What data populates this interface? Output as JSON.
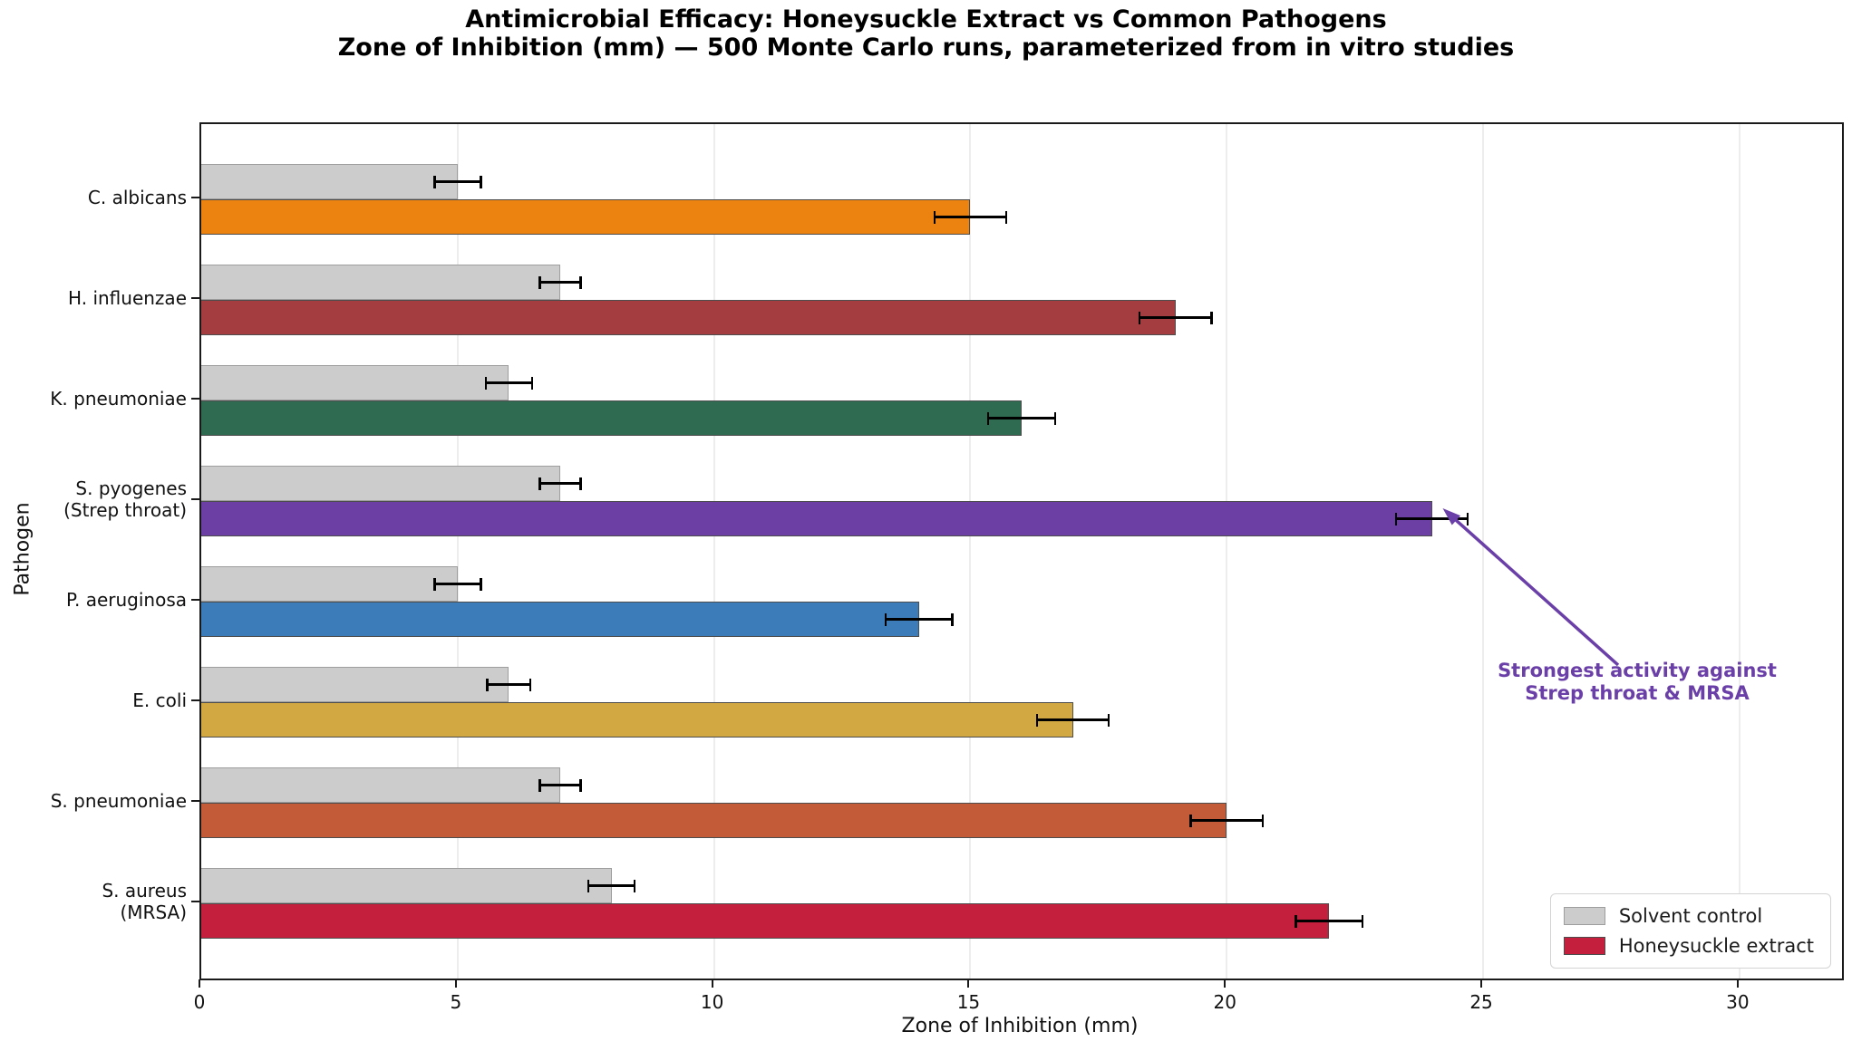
{
  "figure": {
    "title": "Antimicrobial Efficacy: Honeysuckle Extract vs Common Pathogens",
    "subtitle": "Zone of Inhibition (mm) — 500 Monte Carlo runs, parameterized from in vitro studies"
  },
  "chart_data": {
    "type": "bar",
    "orientation": "horizontal",
    "title": "Antimicrobial Efficacy: Honeysuckle Extract vs Common Pathogens",
    "subtitle": "Zone of Inhibition (mm) — 500 Monte Carlo runs, parameterized from in vitro studies",
    "xlabel": "Zone of Inhibition (mm)",
    "ylabel": "Pathogen",
    "xlim": [
      0,
      32
    ],
    "xticks": [
      0,
      5,
      10,
      15,
      20,
      25,
      30
    ],
    "grid": true,
    "categories": [
      [
        "C. albicans"
      ],
      [
        "H. influenzae"
      ],
      [
        "K. pneumoniae"
      ],
      [
        "S. pyogenes",
        "(Strep throat)"
      ],
      [
        "P. aeruginosa"
      ],
      [
        "E. coli"
      ],
      [
        "S. pneumoniae"
      ],
      [
        "S. aureus",
        "(MRSA)"
      ]
    ],
    "series": [
      {
        "name": "Solvent control",
        "color": "#cccccc",
        "edge_color": "#9e9e9e",
        "values": [
          5.0,
          7.0,
          6.0,
          7.0,
          5.0,
          6.0,
          7.0,
          8.0
        ],
        "errors": [
          0.45,
          0.4,
          0.45,
          0.4,
          0.45,
          0.42,
          0.4,
          0.45
        ]
      },
      {
        "name": "Honeysuckle extract",
        "color": "#c51f3e",
        "edge_color": "#4d4d4d",
        "values": [
          15.0,
          19.0,
          16.0,
          24.0,
          14.0,
          17.0,
          20.0,
          22.0
        ],
        "errors": [
          0.7,
          0.7,
          0.65,
          0.7,
          0.65,
          0.7,
          0.7,
          0.65
        ],
        "bar_colors": [
          "#ec820f",
          "#a43d40",
          "#2f6b50",
          "#6b3fa4",
          "#3b7cb9",
          "#d2a843",
          "#c45b38",
          "#c51f3e"
        ]
      }
    ],
    "legend": {
      "position": "lower right",
      "labels": [
        "Solvent control",
        "Honeysuckle extract"
      ]
    },
    "annotation": {
      "lines": [
        "Strongest activity against",
        "Strep throat & MRSA"
      ],
      "color": "#6b3fa8",
      "target_category": "S. pyogenes (Strep throat)",
      "target_x": 24
    }
  }
}
